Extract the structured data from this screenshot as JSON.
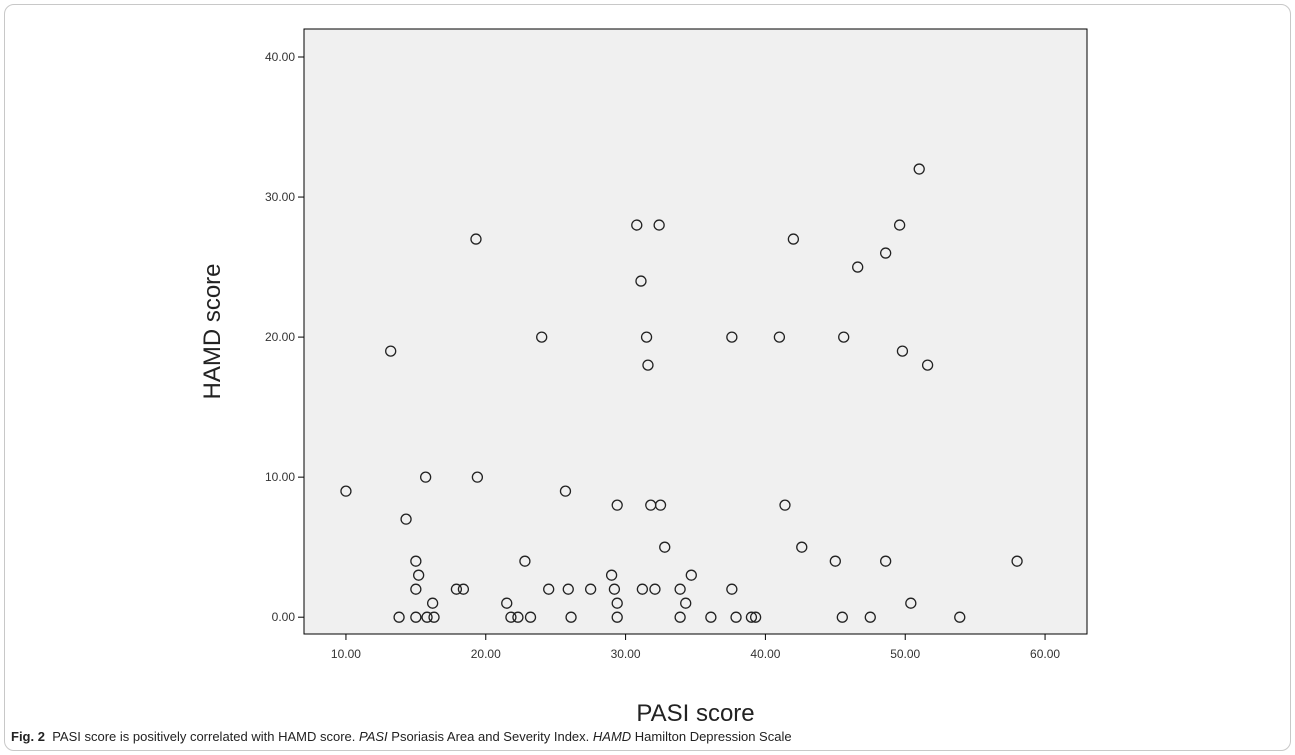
{
  "chart_data": {
    "type": "scatter",
    "title": "",
    "xlabel": "PASI score",
    "ylabel": "HAMD score",
    "xlim": [
      7.0,
      63.0
    ],
    "ylim": [
      -1.2,
      42.0
    ],
    "xticks": [
      "10.00",
      "20.00",
      "30.00",
      "40.00",
      "50.00",
      "60.00"
    ],
    "yticks": [
      "0.00",
      "10.00",
      "20.00",
      "30.00",
      "40.00"
    ],
    "grid": false,
    "points": [
      {
        "x": 10.0,
        "y": 9
      },
      {
        "x": 13.2,
        "y": 19
      },
      {
        "x": 13.8,
        "y": 0
      },
      {
        "x": 14.3,
        "y": 7
      },
      {
        "x": 15.0,
        "y": 4
      },
      {
        "x": 15.0,
        "y": 2
      },
      {
        "x": 15.2,
        "y": 3
      },
      {
        "x": 15.0,
        "y": 0
      },
      {
        "x": 15.7,
        "y": 10
      },
      {
        "x": 15.8,
        "y": 0
      },
      {
        "x": 16.2,
        "y": 1
      },
      {
        "x": 16.3,
        "y": 0
      },
      {
        "x": 17.9,
        "y": 2
      },
      {
        "x": 18.4,
        "y": 2
      },
      {
        "x": 19.3,
        "y": 27
      },
      {
        "x": 19.4,
        "y": 10
      },
      {
        "x": 21.5,
        "y": 1
      },
      {
        "x": 21.8,
        "y": 0
      },
      {
        "x": 22.3,
        "y": 0
      },
      {
        "x": 22.8,
        "y": 4
      },
      {
        "x": 23.2,
        "y": 0
      },
      {
        "x": 24.0,
        "y": 20
      },
      {
        "x": 24.5,
        "y": 2
      },
      {
        "x": 25.7,
        "y": 9
      },
      {
        "x": 25.9,
        "y": 2
      },
      {
        "x": 26.1,
        "y": 0
      },
      {
        "x": 27.5,
        "y": 2
      },
      {
        "x": 29.0,
        "y": 3
      },
      {
        "x": 29.2,
        "y": 2
      },
      {
        "x": 29.4,
        "y": 8
      },
      {
        "x": 29.4,
        "y": 1
      },
      {
        "x": 29.4,
        "y": 0
      },
      {
        "x": 30.8,
        "y": 28
      },
      {
        "x": 31.1,
        "y": 24
      },
      {
        "x": 31.2,
        "y": 2
      },
      {
        "x": 31.5,
        "y": 20
      },
      {
        "x": 31.6,
        "y": 18
      },
      {
        "x": 31.8,
        "y": 8
      },
      {
        "x": 32.1,
        "y": 2
      },
      {
        "x": 32.4,
        "y": 28
      },
      {
        "x": 32.5,
        "y": 8
      },
      {
        "x": 32.8,
        "y": 5
      },
      {
        "x": 33.9,
        "y": 2
      },
      {
        "x": 33.9,
        "y": 0
      },
      {
        "x": 34.3,
        "y": 1
      },
      {
        "x": 34.7,
        "y": 3
      },
      {
        "x": 36.1,
        "y": 0
      },
      {
        "x": 37.6,
        "y": 20
      },
      {
        "x": 37.6,
        "y": 2
      },
      {
        "x": 37.9,
        "y": 0
      },
      {
        "x": 39.0,
        "y": 0
      },
      {
        "x": 39.3,
        "y": 0
      },
      {
        "x": 41.0,
        "y": 20
      },
      {
        "x": 41.4,
        "y": 8
      },
      {
        "x": 42.0,
        "y": 27
      },
      {
        "x": 42.6,
        "y": 5
      },
      {
        "x": 45.0,
        "y": 4
      },
      {
        "x": 45.5,
        "y": 0
      },
      {
        "x": 45.6,
        "y": 20
      },
      {
        "x": 46.6,
        "y": 25
      },
      {
        "x": 47.5,
        "y": 0
      },
      {
        "x": 48.6,
        "y": 26
      },
      {
        "x": 48.6,
        "y": 4
      },
      {
        "x": 49.6,
        "y": 28
      },
      {
        "x": 49.8,
        "y": 19
      },
      {
        "x": 50.4,
        "y": 1
      },
      {
        "x": 51.0,
        "y": 32
      },
      {
        "x": 51.6,
        "y": 18
      },
      {
        "x": 53.9,
        "y": 0
      },
      {
        "x": 58.0,
        "y": 4
      }
    ]
  },
  "caption": {
    "fig_label": "Fig. 2",
    "text1": "PASI score is positively correlated with HAMD score. ",
    "abbr1": "PASI",
    "text2": " Psoriasis Area and Severity Index. ",
    "abbr2": "HAMD",
    "text3": " Hamilton Depression Scale"
  }
}
